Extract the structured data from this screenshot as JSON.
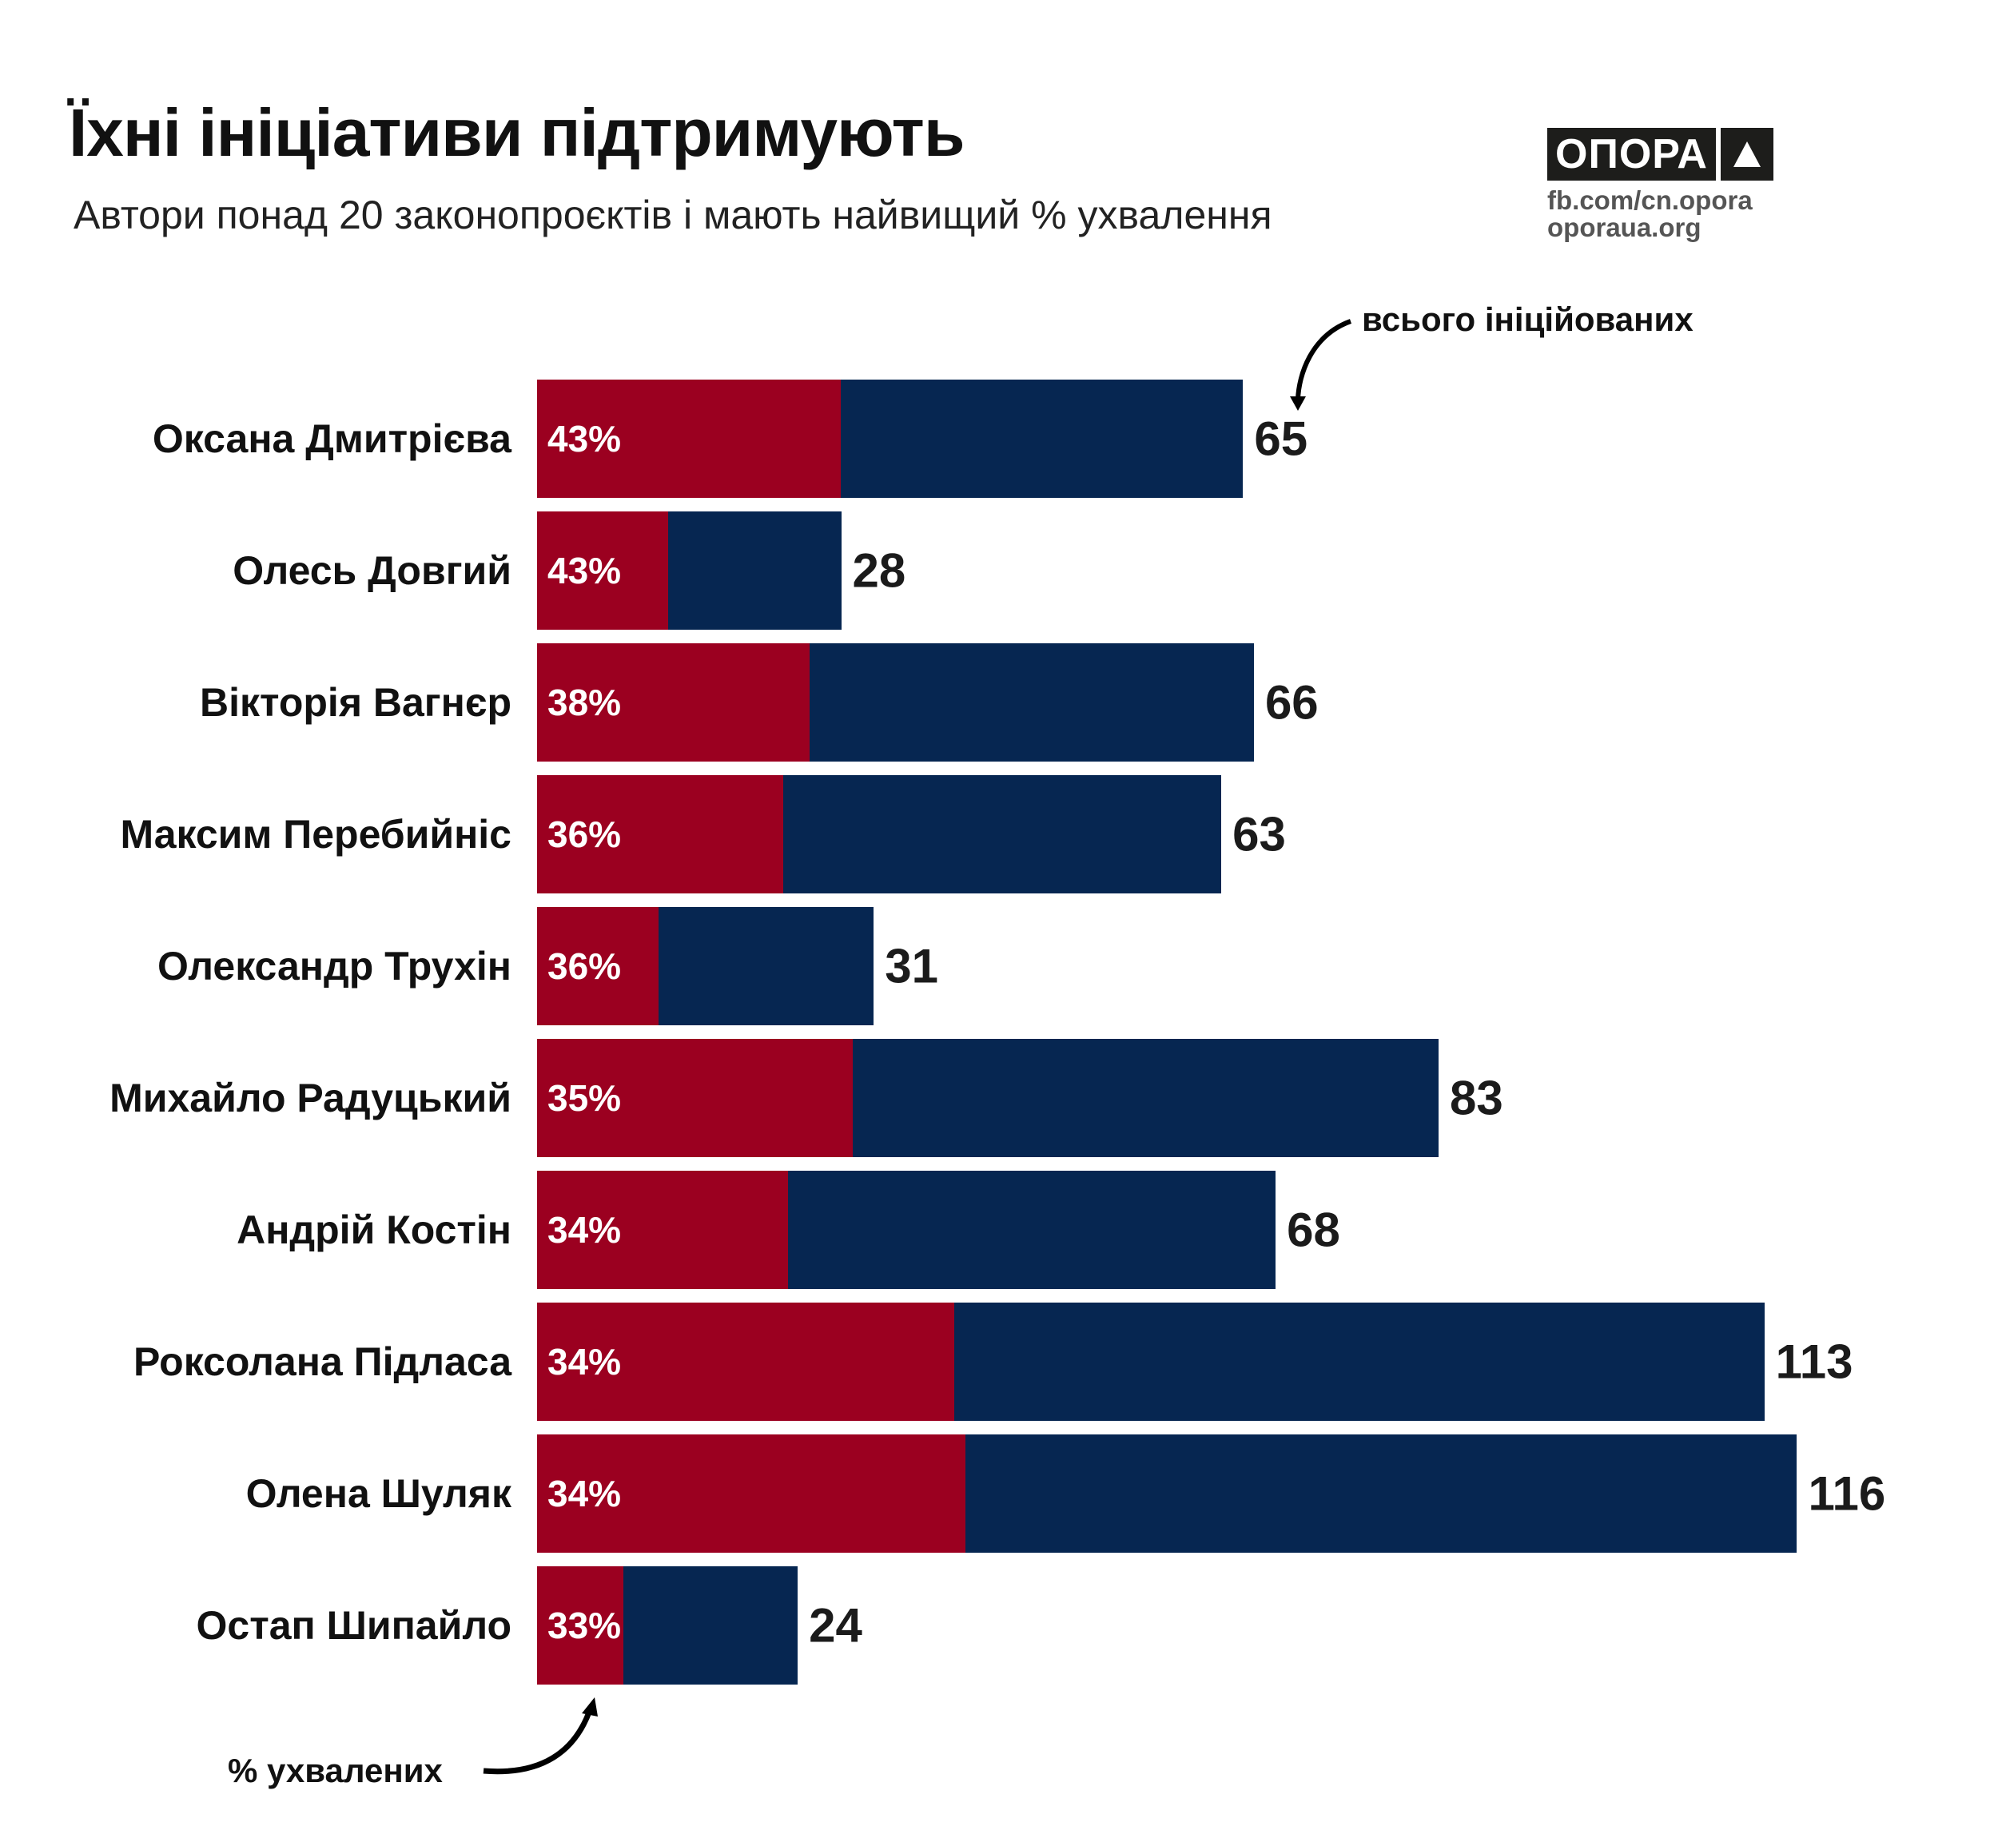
{
  "title": "Їхні ініціативи підтримують",
  "subtitle": "Автори понад 20 законопроєктів і мають найвищий % ухвалення",
  "logo": {
    "text": "ОПОРА",
    "fb": "fb.com/cn.opora",
    "site": "oporaua.org"
  },
  "chart_data": {
    "type": "bar",
    "orientation": "horizontal",
    "title": "Їхні ініціативи підтримують",
    "categories": [
      "Оксана Дмитрієва",
      "Олесь Довгий",
      "Вікторія Вагнєр",
      "Максим Перебийніс",
      "Олександр Трухін",
      "Михайло Радуцький",
      "Андрій Костін",
      "Роксолана Підласа",
      "Олена Шуляк",
      "Остап Шипайло"
    ],
    "series": [
      {
        "name": "всього ініційованих",
        "values": [
          65,
          28,
          66,
          63,
          31,
          83,
          68,
          113,
          116,
          24
        ],
        "color": "#062651"
      },
      {
        "name": "% ухвалених",
        "values": [
          43,
          43,
          38,
          36,
          36,
          35,
          34,
          34,
          34,
          33
        ],
        "color": "#9b0020"
      }
    ],
    "pct_labels": [
      "43%",
      "43%",
      "38%",
      "36%",
      "36%",
      "35%",
      "34%",
      "34%",
      "34%",
      "33%"
    ],
    "annotations": {
      "total": "всього ініційованих",
      "approved": "% ухвалених"
    },
    "xlim": [
      0,
      116
    ]
  }
}
